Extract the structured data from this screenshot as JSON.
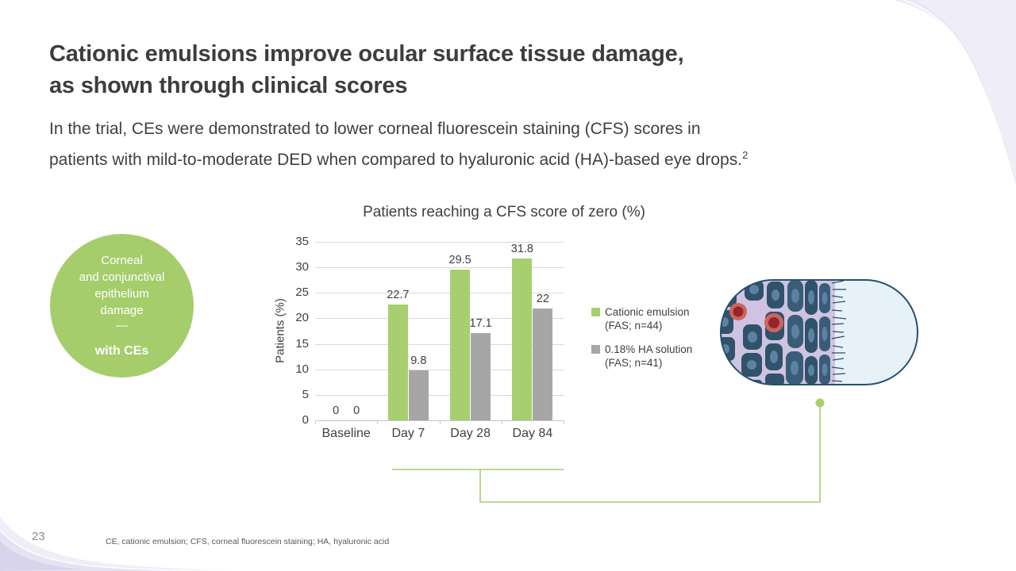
{
  "slide": {
    "title_line1": "Cationic emulsions improve ocular surface tissue damage,",
    "title_line2": "as shown through clinical scores",
    "body_line1": "In the trial, CEs were demonstrated to lower corneal fluorescein staining (CFS) scores in",
    "body_line2": "patients with mild-to-moderate DED when compared to hyaluronic acid (HA)-based eye drops.",
    "body_superscript": "2",
    "page_number": "23",
    "footnote": "CE, cationic emulsion; CFS, corneal fluorescein staining; HA, hyaluronic acid"
  },
  "highlight_circle": {
    "lines": [
      "Corneal",
      "and conjunctival",
      "epithelium",
      "damage"
    ],
    "separator": "—",
    "emphasis": "with CEs",
    "color": "#a5cd6c"
  },
  "chart_data": {
    "type": "bar",
    "title": "Patients reaching a CFS score of zero (%)",
    "xlabel": "",
    "ylabel": "Patients (%)",
    "categories": [
      "Baseline",
      "Day 7",
      "Day 28",
      "Day 84"
    ],
    "series": [
      {
        "name": "Cationic emulsion (FAS; n=44)",
        "color": "#a7cf6f",
        "values": [
          0,
          22.7,
          29.5,
          31.8
        ]
      },
      {
        "name": "0.18% HA solution (FAS; n=41)",
        "color": "#a6a6a6",
        "values": [
          0,
          9.8,
          17.1,
          22
        ]
      }
    ],
    "ylim": [
      0,
      35
    ],
    "ytick_step": 5,
    "grid": true,
    "legend_position": "right",
    "legend": [
      {
        "line1": "Cationic emulsion",
        "line2": "(FAS; n=44)"
      },
      {
        "line1": "0.18% HA solution",
        "line2": "(FAS; n=41)"
      }
    ],
    "data_labels_shown": true
  },
  "colors": {
    "accent_green": "#a7cf6f",
    "bar_gray": "#a6a6a6",
    "gridline": "#d9d9d9",
    "text_dark": "#404040",
    "wave_lavender": "#e9e7f4",
    "tissue_outline": "#26506e",
    "tissue_cell": "#30526a",
    "tissue_background": "#cfc3e1",
    "tissue_clear": "#e7f1f8",
    "damaged_cell_red": "#93262b"
  }
}
